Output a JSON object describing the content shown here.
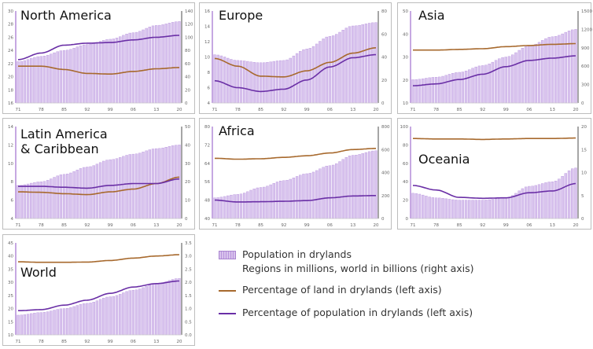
{
  "colors": {
    "bars": "#d9c4ee",
    "bar_edge": "#b793dc",
    "land_line": "#a7692d",
    "pop_line": "#6a2fa6",
    "axis": "#999999"
  },
  "legend": {
    "bars_label": "Population in drylands",
    "bars_sublabel": "Regions in millions, world in billions (right axis)",
    "land_label": "Percentage of land in drylands (left axis)",
    "pop_label": "Percentage of population in drylands (left axis)"
  },
  "chart_data": [
    {
      "type": "bar+line",
      "title": "North America",
      "x_ticks": [
        "71",
        "78",
        "85",
        "92",
        "99",
        "06",
        "13",
        "20"
      ],
      "years": [
        1971,
        1978,
        1985,
        1992,
        1999,
        2006,
        2013,
        2020
      ],
      "left_ylim": [
        16,
        30
      ],
      "left_ticks": [
        "16",
        "18",
        "20",
        "22",
        "24",
        "26",
        "28",
        "30"
      ],
      "right_ylim": [
        0,
        140
      ],
      "right_ticks": [
        "0",
        "20",
        "40",
        "60",
        "80",
        "100",
        "120",
        "140"
      ],
      "population": [
        63,
        71,
        80,
        89,
        97,
        107,
        118,
        124
      ],
      "land_pct": [
        21.6,
        21.6,
        21.1,
        20.5,
        20.4,
        20.8,
        21.2,
        21.4
      ],
      "pop_pct": [
        22.6,
        23.6,
        24.8,
        25.1,
        25.2,
        25.6,
        26.0,
        26.3
      ]
    },
    {
      "type": "bar+line",
      "title": "Europe",
      "x_ticks": [
        "71",
        "78",
        "85",
        "92",
        "99",
        "06",
        "13",
        "20"
      ],
      "years": [
        1971,
        1978,
        1985,
        1992,
        1999,
        2006,
        2013,
        2020
      ],
      "left_ylim": [
        4,
        16
      ],
      "left_ticks": [
        "4",
        "6",
        "8",
        "10",
        "12",
        "14",
        "16"
      ],
      "right_ylim": [
        0,
        80
      ],
      "right_ticks": [
        "0",
        "20",
        "40",
        "60",
        "80"
      ],
      "population": [
        42,
        37,
        35,
        37,
        47,
        58,
        67,
        70
      ],
      "land_pct": [
        9.8,
        8.8,
        7.5,
        7.4,
        8.2,
        9.3,
        10.5,
        11.2
      ],
      "pop_pct": [
        6.9,
        6.0,
        5.5,
        5.8,
        7.0,
        8.7,
        9.9,
        10.3
      ]
    },
    {
      "type": "bar+line",
      "title": "Asia",
      "x_ticks": [
        "71",
        "78",
        "85",
        "92",
        "99",
        "06",
        "13",
        "20"
      ],
      "years": [
        1971,
        1978,
        1985,
        1992,
        1999,
        2006,
        2013,
        2020
      ],
      "left_ylim": [
        10,
        50
      ],
      "left_ticks": [
        "10",
        "20",
        "30",
        "40",
        "50"
      ],
      "right_ylim": [
        0,
        1500
      ],
      "right_ticks": [
        "0",
        "300",
        "600",
        "900",
        "1200",
        "1500"
      ],
      "population": [
        380,
        420,
        500,
        610,
        750,
        930,
        1080,
        1200
      ],
      "land_pct": [
        33,
        33,
        33.3,
        33.6,
        34.5,
        35,
        35.5,
        35.8
      ],
      "pop_pct": [
        17.5,
        18.3,
        20.2,
        22.5,
        25.8,
        28.5,
        29.5,
        30.5
      ]
    },
    {
      "type": "bar+line",
      "title": "Latin America\n& Caribbean",
      "x_ticks": [
        "71",
        "78",
        "85",
        "92",
        "99",
        "06",
        "13",
        "20"
      ],
      "years": [
        1971,
        1978,
        1985,
        1992,
        1999,
        2006,
        2013,
        2020
      ],
      "left_ylim": [
        4,
        14
      ],
      "left_ticks": [
        "4",
        "6",
        "8",
        "10",
        "12",
        "14"
      ],
      "right_ylim": [
        0,
        50
      ],
      "right_ticks": [
        "0",
        "10",
        "20",
        "30",
        "40",
        "50"
      ],
      "population": [
        18,
        20,
        24,
        28,
        32,
        35,
        38,
        40
      ],
      "land_pct": [
        6.9,
        6.85,
        6.7,
        6.6,
        6.9,
        7.2,
        7.8,
        8.5
      ],
      "pop_pct": [
        7.5,
        7.5,
        7.4,
        7.3,
        7.6,
        7.8,
        7.8,
        8.3
      ]
    },
    {
      "type": "bar+line",
      "title": "Africa",
      "x_ticks": [
        "71",
        "78",
        "85",
        "92",
        "99",
        "06",
        "13",
        "20"
      ],
      "years": [
        1971,
        1978,
        1985,
        1992,
        1999,
        2006,
        2013,
        2020
      ],
      "left_ylim": [
        40,
        80
      ],
      "left_ticks": [
        "40",
        "48",
        "56",
        "64",
        "72",
        "80"
      ],
      "right_ylim": [
        0,
        800
      ],
      "right_ticks": [
        "0",
        "200",
        "400",
        "600",
        "800"
      ],
      "population": [
        180,
        210,
        270,
        330,
        390,
        460,
        550,
        590
      ],
      "land_pct": [
        66.2,
        65.8,
        66,
        66.6,
        67.3,
        68.5,
        70,
        70.5
      ],
      "pop_pct": [
        48,
        47.2,
        47.3,
        47.5,
        47.8,
        49,
        49.8,
        50
      ]
    },
    {
      "type": "bar+line",
      "title": "Oceania",
      "x_ticks": [
        "71",
        "78",
        "85",
        "92",
        "99",
        "06",
        "13",
        "20"
      ],
      "years": [
        1971,
        1978,
        1985,
        1992,
        1999,
        2006,
        2013,
        2020
      ],
      "left_ylim": [
        0,
        100
      ],
      "left_ticks": [
        "0",
        "20",
        "40",
        "60",
        "80",
        "100"
      ],
      "right_ylim": [
        0,
        20
      ],
      "right_ticks": [
        "0",
        "5",
        "10",
        "15",
        "20"
      ],
      "population": [
        5.5,
        4.5,
        4,
        4,
        4.5,
        7,
        8,
        11
      ],
      "land_pct": [
        87,
        86.5,
        86.5,
        86,
        86.5,
        87,
        87,
        87.5
      ],
      "pop_pct": [
        36,
        31,
        23,
        22,
        22.5,
        28,
        30,
        38
      ]
    },
    {
      "type": "bar+line",
      "title": "World",
      "x_ticks": [
        "71",
        "78",
        "85",
        "92",
        "99",
        "06",
        "13",
        "20"
      ],
      "years": [
        1971,
        1978,
        1985,
        1992,
        1999,
        2006,
        2013,
        2020
      ],
      "left_ylim": [
        10,
        45
      ],
      "left_ticks": [
        "10",
        "15",
        "20",
        "25",
        "30",
        "35",
        "40",
        "45"
      ],
      "right_ylim": [
        0,
        3.5
      ],
      "right_ticks": [
        "0.0",
        "0.5",
        "1.0",
        "1.5",
        "2.0",
        "2.5",
        "3.0",
        "3.5"
      ],
      "population": [
        0.75,
        0.85,
        1.0,
        1.2,
        1.45,
        1.7,
        1.95,
        2.15
      ],
      "land_pct": [
        37.8,
        37.6,
        37.6,
        37.7,
        38.3,
        39.2,
        40,
        40.5
      ],
      "pop_pct": [
        19.2,
        19.6,
        21.3,
        23.2,
        25.8,
        28.2,
        29.5,
        30.5
      ]
    }
  ]
}
